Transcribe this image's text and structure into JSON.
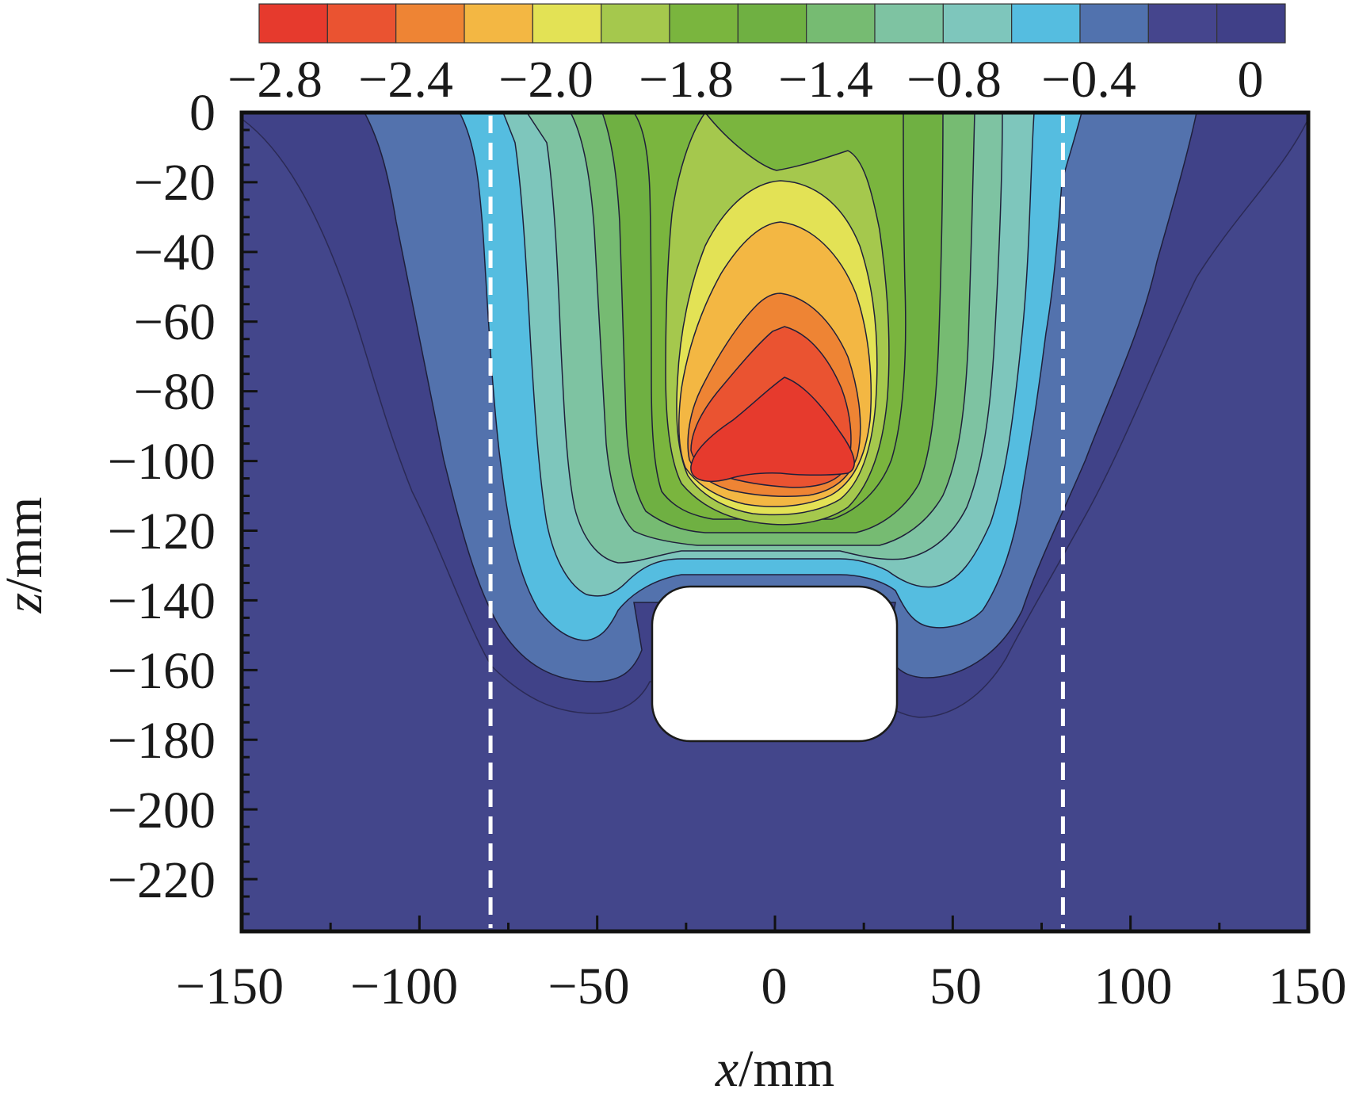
{
  "chart_data": {
    "type": "contour",
    "xlabel": {
      "var": "x",
      "unit": "/mm"
    },
    "ylabel": {
      "var": "z",
      "unit": "/mm"
    },
    "xlim": [
      -150,
      150
    ],
    "ylim": [
      -235,
      0
    ],
    "x_ticks": [
      -150,
      -100,
      -50,
      0,
      50,
      100,
      150
    ],
    "x_tick_labels": [
      "−150",
      "−100",
      "−50",
      "0",
      "50",
      "100",
      "150"
    ],
    "y_ticks": [
      0,
      -20,
      -40,
      -60,
      -80,
      -100,
      -120,
      -140,
      -160,
      -180,
      -200,
      -220
    ],
    "y_tick_labels": [
      "0",
      "−20",
      "−40",
      "−60",
      "−80",
      "−100",
      "−120",
      "−140",
      "−160",
      "−180",
      "−200",
      "−220"
    ],
    "colorbar": {
      "colors": [
        "#e63a2d",
        "#ea5331",
        "#ee8434",
        "#f3b743",
        "#e3e255",
        "#a5c84d",
        "#7ab53e",
        "#6fb042",
        "#76bb72",
        "#7ec3a2",
        "#7ec6bc",
        "#55bde0",
        "#5172ae",
        "#45458d",
        "#404088"
      ],
      "tick_labels": [
        "−2.8",
        "−2.4",
        "−2.0",
        "−1.8",
        "−1.4",
        "−0.8",
        "−0.4",
        "0"
      ]
    },
    "dashed_lines_x": [
      -80,
      81
    ],
    "obstacle": {
      "x_range": [
        -35,
        34
      ],
      "z_range": [
        -178,
        -135
      ]
    },
    "peak": {
      "x": 0,
      "z": -95,
      "value": -2.8
    }
  }
}
